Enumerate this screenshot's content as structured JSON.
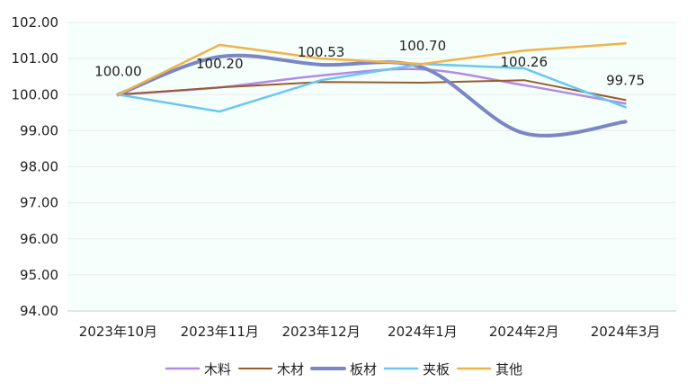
{
  "chart_data": {
    "type": "line",
    "categories": [
      "2023年10月",
      "2023年11月",
      "2023年12月",
      "2024年1月",
      "2024年2月",
      "2024年3月"
    ],
    "ylim": [
      94.0,
      102.0
    ],
    "yticks": [
      94.0,
      95.0,
      96.0,
      97.0,
      98.0,
      99.0,
      100.0,
      101.0,
      102.0
    ],
    "ytick_labels": [
      "94.00",
      "95.00",
      "96.00",
      "97.00",
      "98.00",
      "99.00",
      "100.00",
      "101.00",
      "102.00"
    ],
    "grid": true,
    "plot_background": "#f5fffb",
    "legend_position": "bottom",
    "series": [
      {
        "name": "木料",
        "color": "#b18be6",
        "width": 2.5,
        "smooth": true,
        "values": [
          100.0,
          100.2,
          100.53,
          100.7,
          100.26,
          99.75
        ],
        "data_labels": [
          "100.00",
          "100.20",
          "100.53",
          "100.70",
          "100.26",
          "99.75"
        ]
      },
      {
        "name": "木材",
        "color": "#9c5a2e",
        "width": 2,
        "smooth": false,
        "values": [
          100.0,
          100.2,
          100.35,
          100.33,
          100.4,
          99.85
        ]
      },
      {
        "name": "板材",
        "color": "#7b86c5",
        "width": 4,
        "smooth": true,
        "values": [
          100.0,
          101.05,
          100.83,
          100.75,
          98.93,
          99.25
        ]
      },
      {
        "name": "夹板",
        "color": "#69c7f2",
        "width": 2.5,
        "smooth": false,
        "values": [
          100.0,
          99.53,
          100.4,
          100.85,
          100.73,
          99.65
        ]
      },
      {
        "name": "其他",
        "color": "#f2b24a",
        "width": 2.5,
        "smooth": false,
        "values": [
          100.0,
          101.38,
          101.0,
          100.85,
          101.22,
          101.42
        ]
      }
    ]
  }
}
